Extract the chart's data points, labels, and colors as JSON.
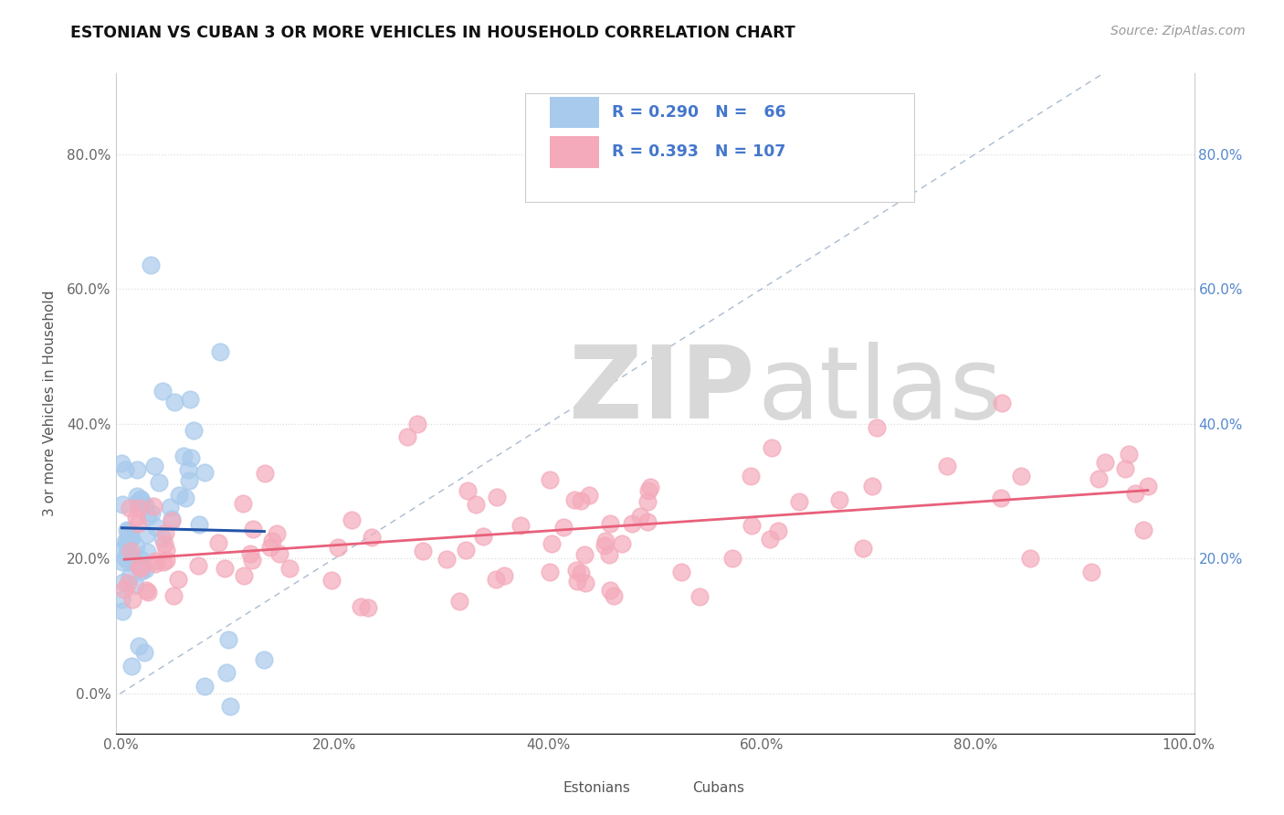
{
  "title": "ESTONIAN VS CUBAN 3 OR MORE VEHICLES IN HOUSEHOLD CORRELATION CHART",
  "source": "Source: ZipAtlas.com",
  "ylabel": "3 or more Vehicles in Household",
  "xlim": [
    -0.005,
    1.005
  ],
  "ylim": [
    -0.06,
    0.92
  ],
  "xticks": [
    0.0,
    0.2,
    0.4,
    0.6,
    0.8,
    1.0
  ],
  "xticklabels": [
    "0.0%",
    "20.0%",
    "40.0%",
    "60.0%",
    "80.0%",
    "100.0%"
  ],
  "yticks_left": [
    0.0,
    0.2,
    0.4,
    0.6,
    0.8
  ],
  "yticklabels_left": [
    "0.0%",
    "20.0%",
    "40.0%",
    "60.0%",
    "80.0%"
  ],
  "yticks_right": [
    0.2,
    0.4,
    0.6,
    0.8
  ],
  "yticklabels_right": [
    "20.0%",
    "40.0%",
    "60.0%",
    "80.0%"
  ],
  "color_estonian": "#A8CAEC",
  "color_cuban": "#F4AABB",
  "line_color_estonian": "#2255AA",
  "line_color_cuban": "#E8607A",
  "legend_text_color": "#4477CC",
  "background_color": "#FFFFFF",
  "grid_color": "#DDDDDD",
  "watermark_color": "#D8D8D8"
}
